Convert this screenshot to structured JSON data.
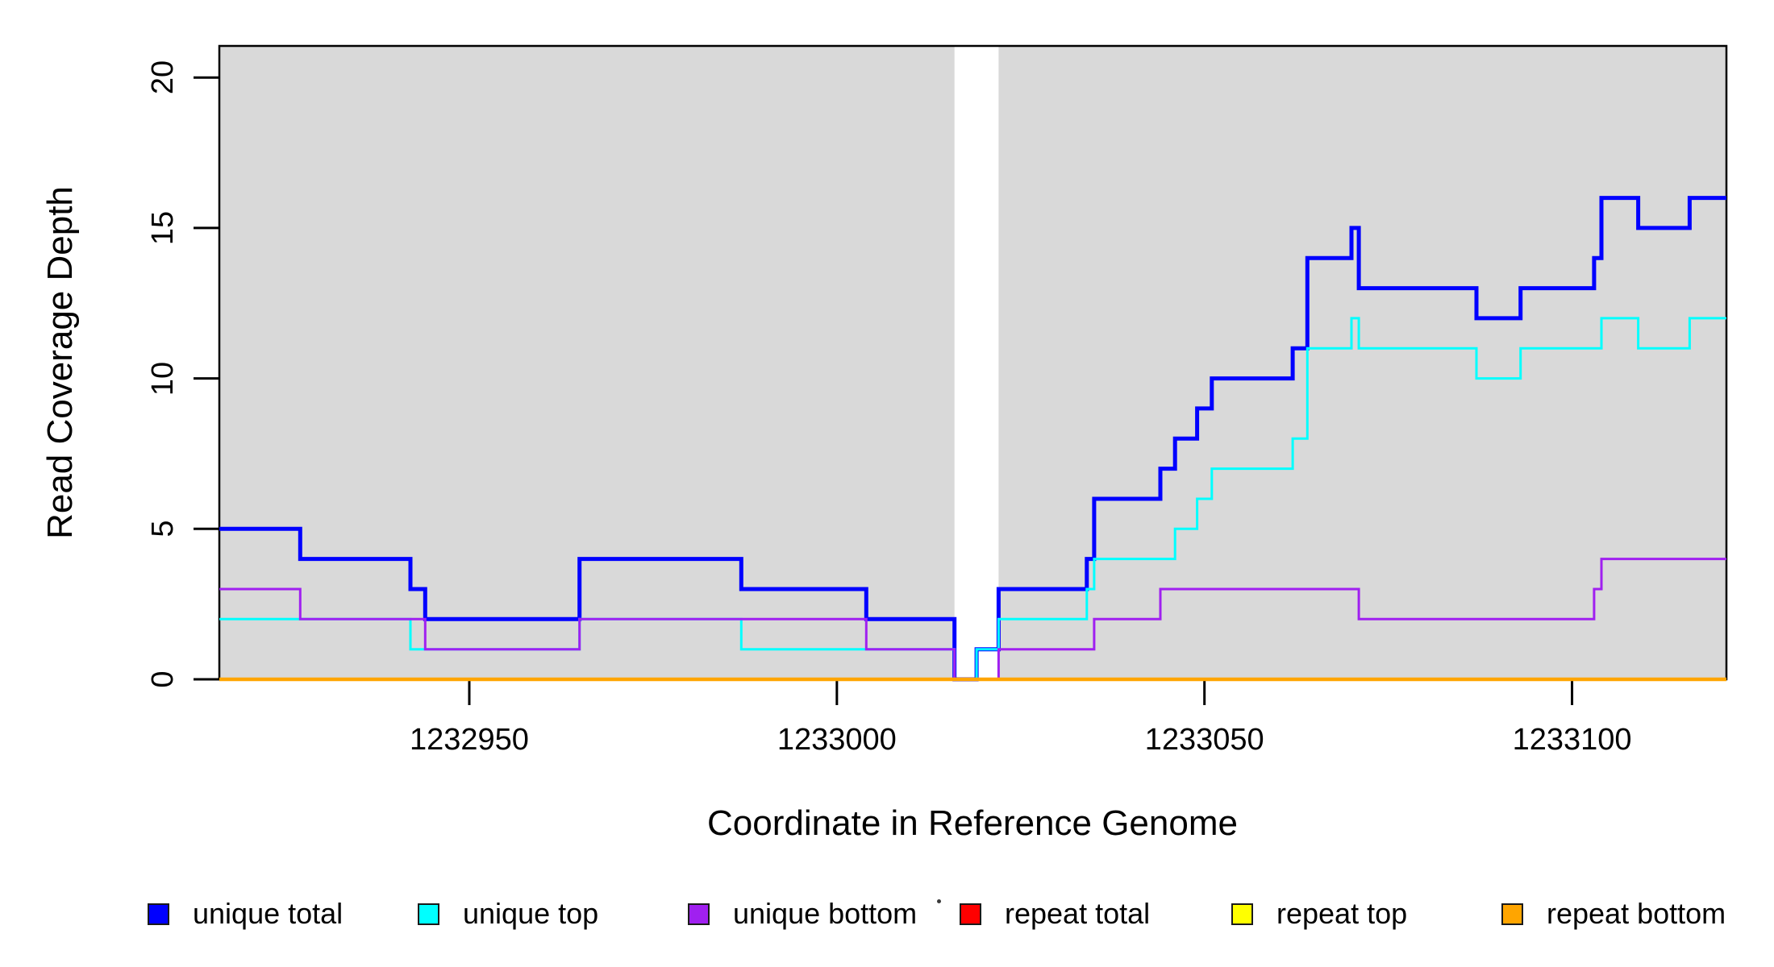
{
  "chart_data": {
    "type": "line",
    "subtype": "step-after-coverage-plot",
    "title": "",
    "xlabel": "Coordinate in Reference Genome",
    "ylabel": "Read Coverage Depth",
    "xlim": [
      1232916,
      1233121
    ],
    "ylim": [
      0,
      21.05
    ],
    "grid": false,
    "plot_background_color": "#D9D9D9",
    "gap_region": {
      "comment": "white vertical band with no gray background",
      "from": 1233016,
      "to": 1233022
    },
    "gray_regions": [
      [
        1232916,
        1233016
      ],
      [
        1233022,
        1233121
      ]
    ],
    "x_ticks": [
      1232950,
      1233000,
      1233050,
      1233100
    ],
    "y_ticks": [
      0,
      5,
      10,
      15,
      20
    ],
    "series": [
      {
        "name": "unique total",
        "color": "#0000FF",
        "line_width": 5,
        "steps": [
          [
            1232916,
            5
          ],
          [
            1232927,
            4
          ],
          [
            1232942,
            3
          ],
          [
            1232944,
            2
          ],
          [
            1232965,
            4
          ],
          [
            1232987,
            3
          ],
          [
            1233004,
            2
          ],
          [
            1233016,
            0
          ],
          [
            1233019,
            1
          ],
          [
            1233022,
            3
          ],
          [
            1233034,
            4
          ],
          [
            1233035,
            6
          ],
          [
            1233044,
            7
          ],
          [
            1233046,
            8
          ],
          [
            1233049,
            9
          ],
          [
            1233051,
            10
          ],
          [
            1233062,
            11
          ],
          [
            1233064,
            14
          ],
          [
            1233070,
            15
          ],
          [
            1233071,
            13
          ],
          [
            1233087,
            12
          ],
          [
            1233093,
            13
          ],
          [
            1233103,
            14
          ],
          [
            1233104,
            16
          ],
          [
            1233109,
            15
          ],
          [
            1233116,
            16
          ]
        ]
      },
      {
        "name": "unique top",
        "color": "#00FFFF",
        "line_width": 3,
        "steps": [
          [
            1232916,
            2
          ],
          [
            1232942,
            1
          ],
          [
            1232965,
            2
          ],
          [
            1232987,
            1
          ],
          [
            1233016,
            0
          ],
          [
            1233019,
            1
          ],
          [
            1233022,
            2
          ],
          [
            1233034,
            3
          ],
          [
            1233035,
            4
          ],
          [
            1233046,
            5
          ],
          [
            1233049,
            6
          ],
          [
            1233051,
            7
          ],
          [
            1233062,
            8
          ],
          [
            1233064,
            11
          ],
          [
            1233070,
            12
          ],
          [
            1233071,
            11
          ],
          [
            1233087,
            10
          ],
          [
            1233093,
            11
          ],
          [
            1233104,
            12
          ],
          [
            1233109,
            11
          ],
          [
            1233116,
            12
          ]
        ]
      },
      {
        "name": "unique bottom",
        "color": "#A020F0",
        "line_width": 3,
        "steps": [
          [
            1232916,
            3
          ],
          [
            1232927,
            2
          ],
          [
            1232944,
            1
          ],
          [
            1232965,
            2
          ],
          [
            1233004,
            1
          ],
          [
            1233016,
            0
          ],
          [
            1233022,
            1
          ],
          [
            1233035,
            2
          ],
          [
            1233044,
            3
          ],
          [
            1233071,
            2
          ],
          [
            1233103,
            3
          ],
          [
            1233104,
            4
          ]
        ]
      },
      {
        "name": "repeat total",
        "color": "#FF0000",
        "line_width": 3,
        "steps": [
          [
            1232916,
            0
          ]
        ]
      },
      {
        "name": "repeat top",
        "color": "#FFFF00",
        "line_width": 3,
        "steps": [
          [
            1232916,
            0
          ]
        ]
      },
      {
        "name": "repeat bottom",
        "color": "#FFA500",
        "line_width": 4.5,
        "steps": [
          [
            1232916,
            0
          ]
        ]
      }
    ],
    "legend": {
      "position": "bottom",
      "items": [
        {
          "label": "unique total",
          "color": "#0000FF"
        },
        {
          "label": "unique top",
          "color": "#00FFFF"
        },
        {
          "label": "unique bottom",
          "color": "#A020F0"
        },
        {
          "label": "repeat total",
          "color": "#FF0000"
        },
        {
          "label": "repeat top",
          "color": "#FFFF00"
        },
        {
          "label": "repeat bottom",
          "color": "#FFA500"
        }
      ]
    },
    "axis_color": "#000000"
  }
}
